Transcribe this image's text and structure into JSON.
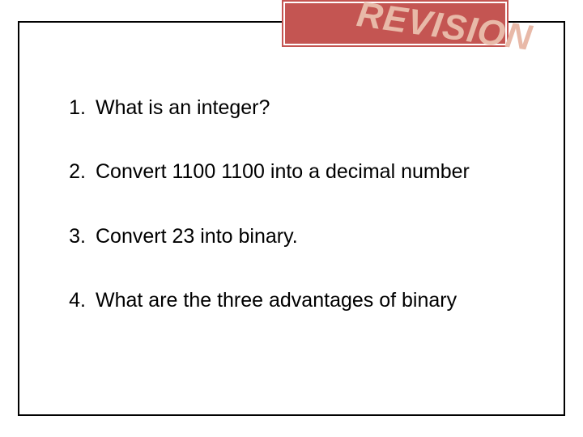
{
  "slide": {
    "title": "REVISION",
    "title_box_color": "#c45552",
    "title_text_color": "#e8b9a8",
    "title_border_color": "#ffffff",
    "frame_border_color": "#000000",
    "background_color": "#ffffff",
    "title_fontsize": 44,
    "body_fontsize": 25,
    "body_color": "#000000",
    "items": [
      {
        "num": "1.",
        "text": "What is an integer?"
      },
      {
        "num": "2.",
        "text": "Convert 1100 1100 into a decimal number"
      },
      {
        "num": "3.",
        "text": "Convert 23 into binary."
      },
      {
        "num": "4.",
        "text": "What are the three advantages of binary"
      }
    ]
  }
}
